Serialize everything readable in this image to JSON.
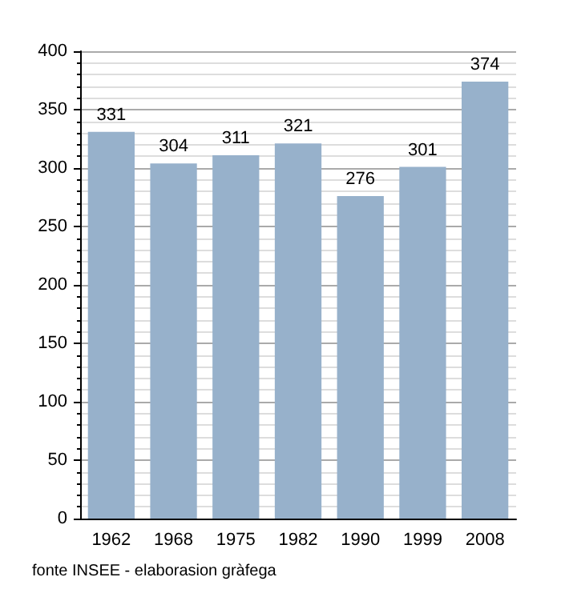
{
  "chart_data": {
    "type": "bar",
    "categories": [
      "1962",
      "1968",
      "1975",
      "1982",
      "1990",
      "1999",
      "2008"
    ],
    "values": [
      331,
      304,
      311,
      321,
      276,
      301,
      374
    ],
    "color": "#97b1cb",
    "ylim": [
      0,
      400
    ],
    "yticks": [
      0,
      50,
      100,
      150,
      200,
      250,
      300,
      350,
      400
    ],
    "grid": "y",
    "data_labels": true,
    "annotations": [
      "fonte INSEE - elaborasion gràfega"
    ]
  }
}
